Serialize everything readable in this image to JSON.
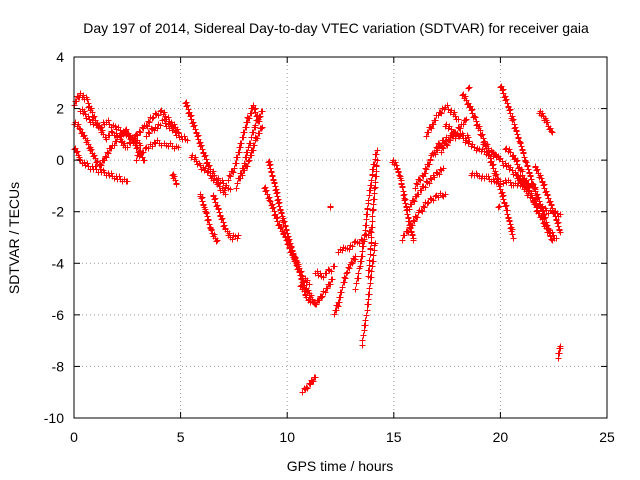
{
  "chart_data": {
    "type": "scatter",
    "title": "Day 197 of 2014, Sidereal Day-to-day VTEC variation (SDTVAR) for receiver gaia",
    "xlabel": "GPS time / hours",
    "ylabel": "SDTVAR / TECUs",
    "xlim": [
      0,
      25
    ],
    "ylim": [
      -10,
      4
    ],
    "xticks": [
      0,
      5,
      10,
      15,
      20,
      25
    ],
    "yticks": [
      -10,
      -8,
      -6,
      -4,
      -2,
      0,
      2,
      4
    ],
    "grid": true,
    "marker": "+",
    "series": [
      {
        "name": "SDTVAR",
        "color": "#ff0000",
        "tracks": [
          {
            "x": [
              0.0,
              0.3,
              0.6,
              0.9,
              1.2,
              1.5,
              1.8,
              2.1,
              2.4,
              2.7,
              3.0,
              3.3
            ],
            "y": [
              2.2,
              2.6,
              2.3,
              1.7,
              1.2,
              0.9,
              1.1,
              0.9,
              1.2,
              0.8,
              0.4,
              0.0
            ]
          },
          {
            "x": [
              0.0,
              0.3,
              0.6,
              0.9,
              1.2,
              1.5,
              1.8,
              2.1,
              2.4
            ],
            "y": [
              1.5,
              1.2,
              0.7,
              0.2,
              -0.2,
              0.2,
              0.6,
              0.9,
              0.5
            ]
          },
          {
            "x": [
              0.0,
              0.3,
              0.6,
              0.9,
              1.2,
              1.5,
              1.8,
              2.1,
              2.5
            ],
            "y": [
              0.5,
              0.0,
              -0.2,
              -0.3,
              -0.4,
              -0.5,
              -0.6,
              -0.7,
              -0.8
            ]
          },
          {
            "x": [
              0.3,
              0.7,
              1.1,
              1.5,
              1.9,
              2.3,
              2.7,
              3.1
            ],
            "y": [
              2.0,
              1.6,
              1.3,
              1.5,
              1.3,
              1.1,
              0.9,
              0.6
            ]
          },
          {
            "x": [
              2.5,
              2.9,
              3.3,
              3.7,
              4.1,
              4.5,
              4.9
            ],
            "y": [
              0.6,
              1.0,
              1.3,
              1.7,
              1.9,
              1.5,
              1.1
            ]
          },
          {
            "x": [
              2.9,
              3.4,
              3.9,
              4.4,
              4.9
            ],
            "y": [
              0.1,
              0.5,
              0.7,
              0.6,
              0.5
            ]
          },
          {
            "x": [
              3.4,
              3.8,
              4.2,
              4.6,
              5.0,
              5.3
            ],
            "y": [
              1.0,
              1.3,
              1.5,
              1.2,
              0.9,
              0.8
            ]
          },
          {
            "x": [
              4.6,
              4.8
            ],
            "y": [
              -0.5,
              -0.9
            ]
          },
          {
            "x": [
              5.2,
              5.5,
              5.8,
              6.1,
              6.4,
              6.7,
              7.0,
              7.3
            ],
            "y": [
              2.3,
              1.6,
              0.9,
              0.2,
              -0.4,
              -0.7,
              -0.9,
              -1.1
            ]
          },
          {
            "x": [
              5.5,
              5.9,
              6.3,
              6.7,
              7.1
            ],
            "y": [
              0.2,
              -0.2,
              -0.5,
              -0.9,
              -1.3
            ]
          },
          {
            "x": [
              5.9,
              6.1,
              6.3,
              6.5,
              6.7
            ],
            "y": [
              -1.3,
              -1.8,
              -2.4,
              -2.9,
              -3.1
            ]
          },
          {
            "x": [
              6.5,
              6.8,
              7.1,
              7.4,
              7.7
            ],
            "y": [
              -1.3,
              -2.0,
              -2.7,
              -3.0,
              -2.9
            ]
          },
          {
            "x": [
              7.2,
              7.5,
              7.8,
              8.1,
              8.4,
              8.7
            ],
            "y": [
              -0.7,
              -0.3,
              0.6,
              1.5,
              2.1,
              1.5
            ]
          },
          {
            "x": [
              7.6,
              7.9,
              8.2,
              8.5,
              8.8
            ],
            "y": [
              -1.0,
              -0.3,
              0.6,
              1.4,
              1.9
            ]
          },
          {
            "x": [
              7.9,
              8.2,
              8.5,
              8.8
            ],
            "y": [
              -0.5,
              0.0,
              0.8,
              1.3
            ]
          },
          {
            "x": [
              9.1,
              9.3,
              9.5,
              9.7,
              9.9,
              10.1,
              10.3,
              10.5
            ],
            "y": [
              0.0,
              -0.6,
              -1.3,
              -2.0,
              -2.6,
              -3.2,
              -3.7,
              -4.1
            ]
          },
          {
            "x": [
              8.9,
              9.2,
              9.5,
              9.8,
              10.1,
              10.4,
              10.7,
              11.0
            ],
            "y": [
              -1.0,
              -1.6,
              -2.3,
              -2.8,
              -3.3,
              -3.9,
              -4.5,
              -4.8
            ]
          },
          {
            "x": [
              9.8,
              10.1,
              10.4,
              10.7,
              11.0,
              11.3,
              11.6
            ],
            "y": [
              -2.8,
              -3.4,
              -4.0,
              -4.7,
              -5.2,
              -5.5,
              -5.3
            ]
          },
          {
            "x": [
              10.6,
              10.9,
              11.2,
              11.5,
              11.8,
              12.1
            ],
            "y": [
              -4.8,
              -5.3,
              -5.6,
              -5.4,
              -5.0,
              -4.6
            ]
          },
          {
            "x": [
              11.3,
              11.6,
              11.9,
              12.2
            ],
            "y": [
              -4.3,
              -4.5,
              -4.3,
              -4.1
            ]
          },
          {
            "x": [
              10.7,
              10.9,
              11.1,
              11.3
            ],
            "y": [
              -8.9,
              -8.8,
              -8.6,
              -8.4
            ]
          },
          {
            "x": [
              12.2,
              12.4,
              12.6,
              12.8,
              13.0,
              13.2
            ],
            "y": [
              -5.9,
              -5.5,
              -4.8,
              -4.3,
              -4.0,
              -3.7
            ]
          },
          {
            "x": [
              12.4,
              12.8,
              13.2,
              13.6,
              14.0
            ],
            "y": [
              -3.5,
              -3.4,
              -3.2,
              -3.0,
              -2.6
            ]
          },
          {
            "x": [
              13.2,
              13.4,
              13.6,
              13.8,
              14.0,
              14.2
            ],
            "y": [
              -4.9,
              -4.1,
              -3.0,
              -1.5,
              -0.4,
              0.4
            ]
          },
          {
            "x": [
              13.5,
              13.7,
              13.9,
              14.1
            ],
            "y": [
              -7.1,
              -6.0,
              -4.6,
              -3.2
            ]
          },
          {
            "x": [
              13.8,
              13.9,
              14.0,
              14.1,
              14.2
            ],
            "y": [
              -4.4,
              -3.4,
              -2.0,
              -1.0,
              0.0
            ]
          },
          {
            "x": [
              14.9,
              15.1,
              15.3,
              15.5,
              15.7,
              15.9
            ],
            "y": [
              0.0,
              -0.2,
              -0.7,
              -1.5,
              -2.4,
              -3.1
            ]
          },
          {
            "x": [
              15.4,
              15.8,
              16.2,
              16.6,
              17.0,
              17.4
            ],
            "y": [
              -3.0,
              -2.5,
              -2.0,
              -1.6,
              -1.4,
              -1.3
            ]
          },
          {
            "x": [
              15.7,
              16.1,
              16.5,
              16.9,
              17.3
            ],
            "y": [
              -1.8,
              -1.3,
              -0.9,
              -0.6,
              -0.3
            ]
          },
          {
            "x": [
              16.0,
              16.4,
              16.8,
              17.2
            ],
            "y": [
              -1.0,
              -0.5,
              0.2,
              0.6
            ]
          },
          {
            "x": [
              16.5,
              16.8,
              17.1,
              17.4,
              17.7,
              18.0
            ],
            "y": [
              1.0,
              1.4,
              1.8,
              2.1,
              1.9,
              1.6
            ]
          },
          {
            "x": [
              16.9,
              17.3,
              17.7,
              18.1,
              18.5
            ],
            "y": [
              0.4,
              0.8,
              0.9,
              1.0,
              0.9
            ]
          },
          {
            "x": [
              17.4,
              17.8,
              18.2,
              18.6,
              19.0,
              19.4,
              19.8
            ],
            "y": [
              1.4,
              1.1,
              0.9,
              0.6,
              0.4,
              0.3,
              0.2
            ]
          },
          {
            "x": [
              17.2,
              17.6,
              18.0,
              18.4
            ],
            "y": [
              0.4,
              0.8,
              1.2,
              1.6
            ]
          },
          {
            "x": [
              18.2,
              18.5,
              18.8,
              19.1,
              19.4,
              19.7,
              20.0,
              20.3,
              20.6
            ],
            "y": [
              2.6,
              2.2,
              1.6,
              1.0,
              0.3,
              -0.4,
              -1.1,
              -2.0,
              -3.0
            ]
          },
          {
            "x": [
              18.6,
              19.0,
              19.4,
              19.8,
              20.2,
              20.6,
              21.0
            ],
            "y": [
              -0.5,
              -0.6,
              -0.7,
              -0.8,
              -0.8,
              -0.9,
              -1.0
            ]
          },
          {
            "x": [
              19.2,
              19.6,
              20.0,
              20.4,
              20.8,
              21.2,
              21.6
            ],
            "y": [
              0.7,
              0.3,
              0.0,
              -0.3,
              -0.6,
              -0.9,
              -1.1
            ]
          },
          {
            "x": [
              20.0,
              20.3,
              20.6,
              20.9,
              21.2,
              21.5,
              21.8,
              22.1,
              22.4
            ],
            "y": [
              2.9,
              2.2,
              1.5,
              0.7,
              -0.1,
              -0.9,
              -1.6,
              -2.3,
              -3.1
            ]
          },
          {
            "x": [
              20.2,
              20.6,
              21.0,
              21.4,
              21.8,
              22.2,
              22.6
            ],
            "y": [
              0.5,
              0.2,
              -0.5,
              -1.3,
              -2.1,
              -2.7,
              -3.0
            ]
          },
          {
            "x": [
              20.8,
              21.2,
              21.6,
              22.0,
              22.4,
              22.8
            ],
            "y": [
              -0.6,
              -1.2,
              -1.6,
              -1.9,
              -2.0,
              -2.1
            ]
          },
          {
            "x": [
              21.6,
              21.9,
              22.2,
              22.5,
              22.8
            ],
            "y": [
              -0.2,
              -0.7,
              -1.4,
              -2.0,
              -2.8
            ]
          },
          {
            "x": [
              21.8,
              22.0,
              22.2,
              22.4
            ],
            "y": [
              1.9,
              1.7,
              1.4,
              1.1
            ]
          },
          {
            "x": [
              22.7,
              22.8
            ],
            "y": [
              -7.6,
              -7.2
            ]
          },
          {
            "x": [
              19.9
            ],
            "y": [
              -1.8
            ]
          },
          {
            "x": [
              12.0
            ],
            "y": [
              -1.8
            ]
          },
          {
            "x": [
              18.5
            ],
            "y": [
              2.8
            ]
          }
        ]
      }
    ]
  }
}
